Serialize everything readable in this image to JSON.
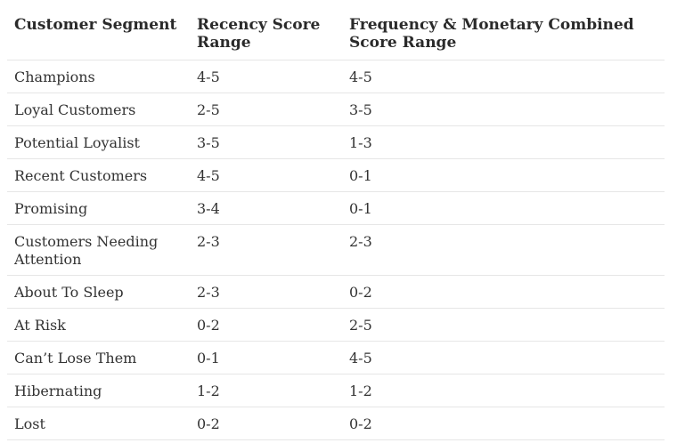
{
  "table": {
    "headers": [
      "Customer Segment",
      "Recency Score Range",
      "Frequency & Monetary Combined Score Range"
    ],
    "rows": [
      [
        "Champions",
        "4-5",
        "4-5"
      ],
      [
        "Loyal Customers",
        "2-5",
        "3-5"
      ],
      [
        "Potential Loyalist",
        "3-5",
        "1-3"
      ],
      [
        "Recent Customers",
        "4-5",
        "0-1"
      ],
      [
        "Promising",
        "3-4",
        "0-1"
      ],
      [
        "Customers Needing Attention",
        "2-3",
        "2-3"
      ],
      [
        "About To Sleep",
        "2-3",
        "0-2"
      ],
      [
        "At Risk",
        "0-2",
        "2-5"
      ],
      [
        "Can’t Lose Them",
        "0-1",
        "4-5"
      ],
      [
        "Hibernating",
        "1-2",
        "1-2"
      ],
      [
        "Lost",
        "0-2",
        "0-2"
      ]
    ]
  }
}
